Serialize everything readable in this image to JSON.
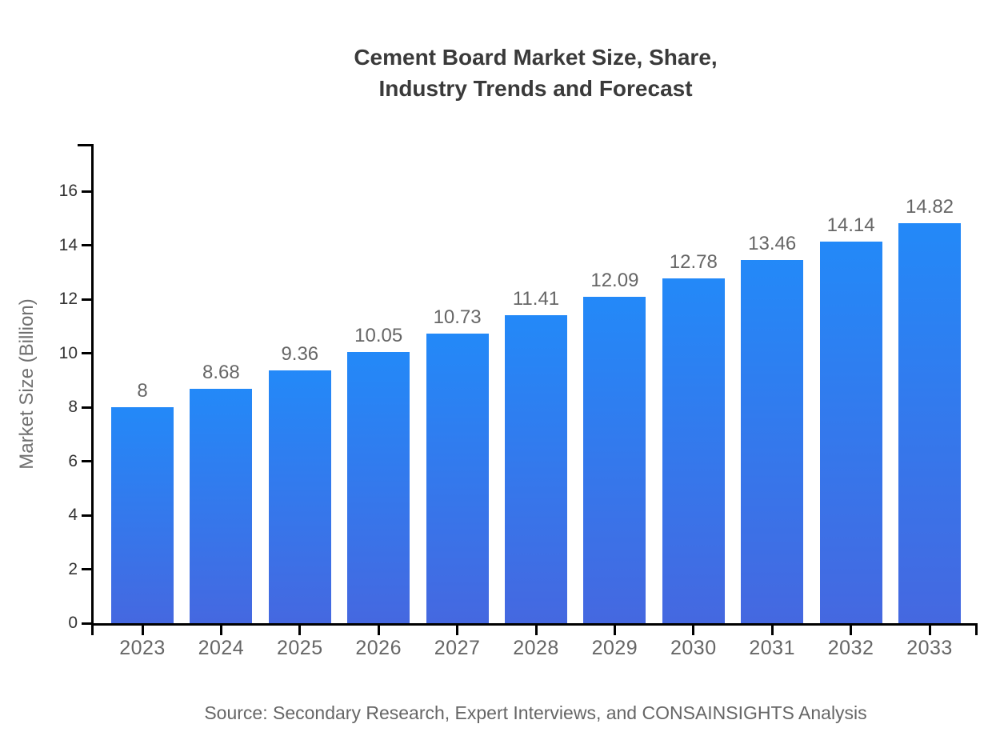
{
  "header": {
    "title_lines": [
      "Cement Board Market Size, Share,",
      "Industry Trends and Forecast"
    ]
  },
  "chart_data": {
    "type": "bar",
    "title": "Cement Board Market Size, Share, Industry Trends and Forecast",
    "categories": [
      "2023",
      "2024",
      "2025",
      "2026",
      "2027",
      "2028",
      "2029",
      "2030",
      "2031",
      "2032",
      "2033"
    ],
    "values": [
      8,
      8.68,
      9.36,
      10.05,
      10.73,
      11.41,
      12.09,
      12.78,
      13.46,
      14.14,
      14.82
    ],
    "value_labels": [
      "8",
      "8.68",
      "9.36",
      "10.05",
      "10.73",
      "11.41",
      "12.09",
      "12.78",
      "13.46",
      "14.14",
      "14.82"
    ],
    "xlabel": "",
    "ylabel": "Market Size (Billion)",
    "yticks": [
      0,
      2,
      4,
      6,
      8,
      10,
      12,
      14,
      16
    ],
    "ylim": [
      0,
      17.75
    ],
    "grid": false,
    "legend": false,
    "source_note": "Source: Secondary Research, Expert Interviews, and CONSAINSIGHTS Analysis",
    "colors": {
      "bar_gradient_top": "#2389F8",
      "bar_gradient_bottom": "#4568E0",
      "axis": "#000000",
      "y_tick_label": "#333333",
      "x_tick_label": "#666666",
      "value_label": "#666666",
      "y_axis_title": "#707070",
      "title": "#3A3A3A",
      "source": "#666666",
      "background": "#FFFFFF"
    }
  }
}
